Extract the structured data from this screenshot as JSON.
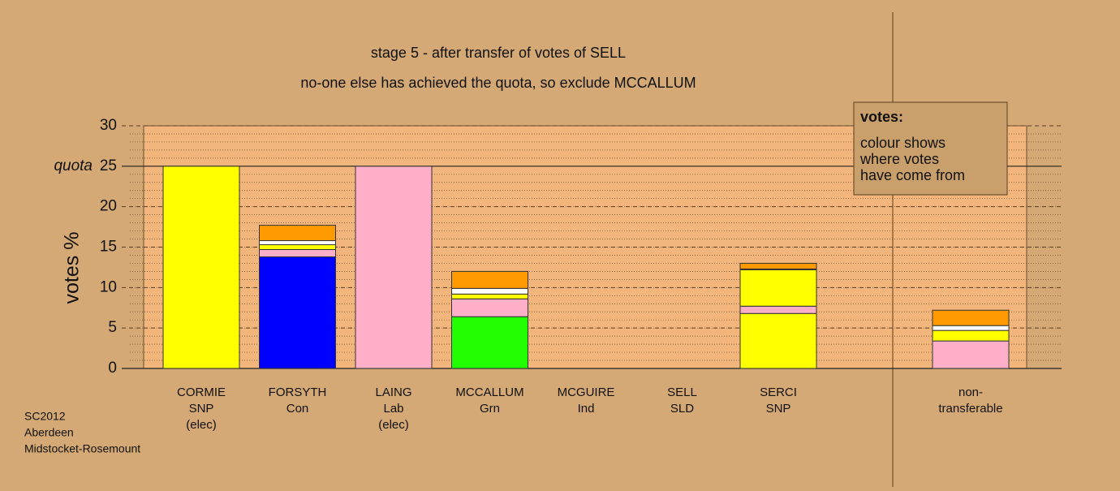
{
  "chart_data": {
    "type": "stacked-bar",
    "title": "stage 5 - after transfer of votes of SELL",
    "subtitle": "no-one else has achieved the quota, so exclude MCCALLUM",
    "y_label": "votes %",
    "categories": [
      [
        "CORMIE",
        "SNP",
        "(elec)"
      ],
      [
        "FORSYTH",
        "Con"
      ],
      [
        "LAING",
        "Lab",
        "(elec)"
      ],
      [
        "MCCALLUM",
        "Grn"
      ],
      [
        "MCGUIRE",
        "Ind"
      ],
      [
        "SELL",
        "SLD"
      ],
      [
        "SERCI",
        "SNP"
      ],
      null,
      [
        "non-",
        "transferable"
      ]
    ],
    "series": [
      {
        "colors": [
          "#ffff00",
          "#0000ff",
          "#ffb0c8",
          "#22ff00",
          "#cccccc",
          "#ff9900",
          "#ffff00",
          null,
          "#ffb0c8"
        ],
        "values": [
          25,
          13.8,
          25,
          6.4,
          0,
          0,
          6.8,
          null,
          0
        ]
      },
      {
        "color": "#ffb0c8",
        "values": [
          0,
          0.9,
          0,
          2.2,
          0,
          0,
          0.9,
          null,
          3.4
        ]
      },
      {
        "color": "#ffff00",
        "values": [
          0,
          0.6,
          0,
          0.6,
          0,
          0,
          4.5,
          null,
          1.3
        ]
      },
      {
        "color": "#ffffff",
        "values": [
          0,
          0.5,
          0,
          0.7,
          0,
          0,
          0.1,
          null,
          0.6
        ]
      },
      {
        "color": "#ff9900",
        "values": [
          0,
          1.9,
          0,
          2.1,
          0,
          0,
          0.7,
          null,
          1.9
        ]
      }
    ],
    "ylim": [
      0,
      30
    ],
    "yticks": [
      0,
      5,
      10,
      15,
      20,
      25,
      30
    ],
    "quota": {
      "value": 25,
      "label": "quota"
    },
    "legend": {
      "title": "votes:",
      "lines": [
        "colour shows",
        "where votes",
        "have come from"
      ]
    },
    "footer": [
      "SC2012",
      "Aberdeen",
      "Midstocket-Rosemount"
    ]
  }
}
